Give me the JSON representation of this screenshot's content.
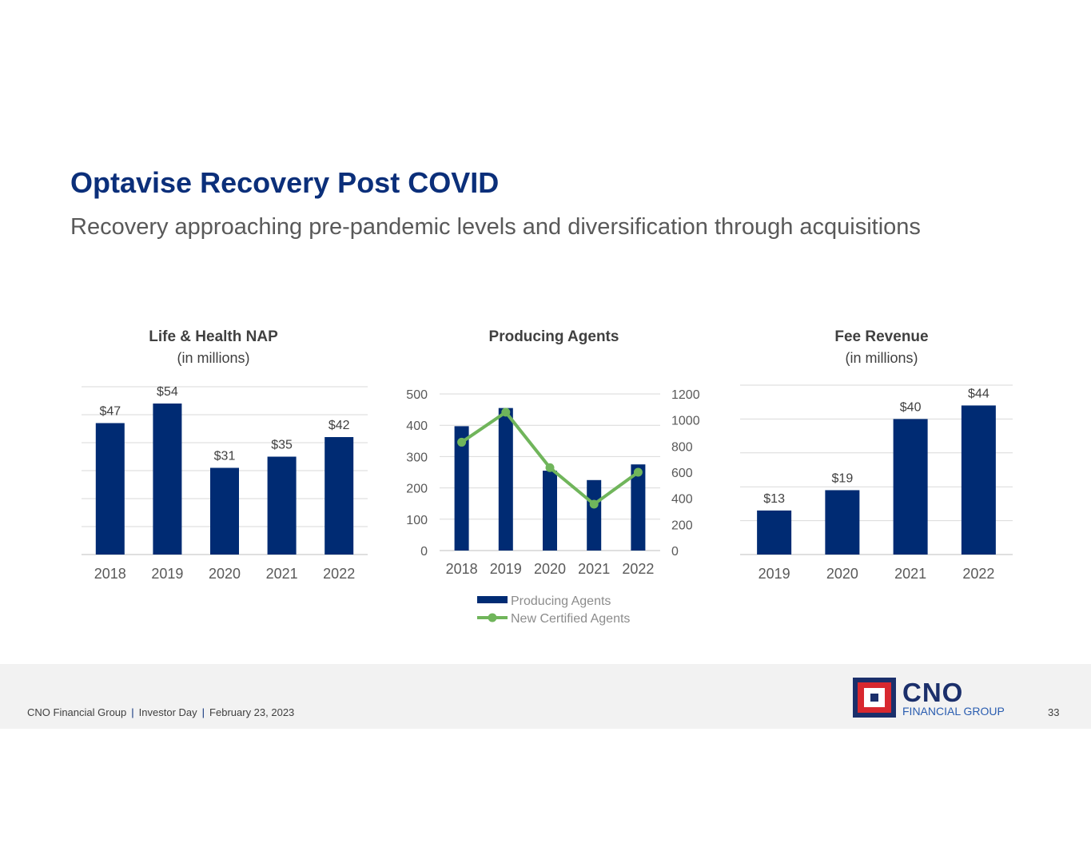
{
  "header": {
    "title": "Optavise Recovery Post COVID",
    "subtitle": "Recovery approaching pre-pandemic levels and diversification through acquisitions"
  },
  "colors": {
    "navy": "#002b73",
    "green": "#70b55b",
    "title": "#0b2f7a",
    "grid": "#d9d9d9"
  },
  "chart_data": [
    {
      "type": "bar",
      "title": "Life & Health NAP",
      "subtitle": "(in millions)",
      "categories": [
        "2018",
        "2019",
        "2020",
        "2021",
        "2022"
      ],
      "values": [
        47,
        54,
        31,
        35,
        42
      ],
      "labels": [
        "$47",
        "$54",
        "$31",
        "$35",
        "$42"
      ],
      "ylim": [
        0,
        60
      ],
      "grid": true,
      "axis_labels_visible": false
    },
    {
      "type": "bar+line",
      "title": "Producing Agents",
      "categories": [
        "2018",
        "2019",
        "2020",
        "2021",
        "2022"
      ],
      "series": [
        {
          "name": "Producing Agents",
          "type": "bar",
          "axis": "left",
          "values": [
            397,
            455,
            255,
            225,
            275
          ]
        },
        {
          "name": "New Certified Agents",
          "type": "line",
          "axis": "right",
          "values": [
            830,
            1060,
            635,
            355,
            600
          ]
        }
      ],
      "ylim_left": [
        0,
        500
      ],
      "yticks_left": [
        "0",
        "100",
        "200",
        "300",
        "400",
        "500"
      ],
      "ylim_right": [
        0,
        1200
      ],
      "yticks_right": [
        "0",
        "200",
        "400",
        "600",
        "800",
        "1000",
        "1200"
      ],
      "legend": {
        "position": "bottom",
        "entries": [
          "Producing Agents",
          "New Certified Agents"
        ]
      },
      "grid": true
    },
    {
      "type": "bar",
      "title": "Fee Revenue",
      "subtitle": "(in millions)",
      "categories": [
        "2019",
        "2020",
        "2021",
        "2022"
      ],
      "values": [
        13,
        19,
        40,
        44
      ],
      "labels": [
        "$13",
        "$19",
        "$40",
        "$44"
      ],
      "ylim": [
        0,
        50
      ],
      "grid": true,
      "axis_labels_visible": false
    }
  ],
  "footer": {
    "company": "CNO Financial Group",
    "separator": "|",
    "event": "Investor Day",
    "date": "February 23, 2023",
    "page_number": "33",
    "logo_text": "CNO",
    "logo_subtext": "FINANCIAL GROUP"
  }
}
